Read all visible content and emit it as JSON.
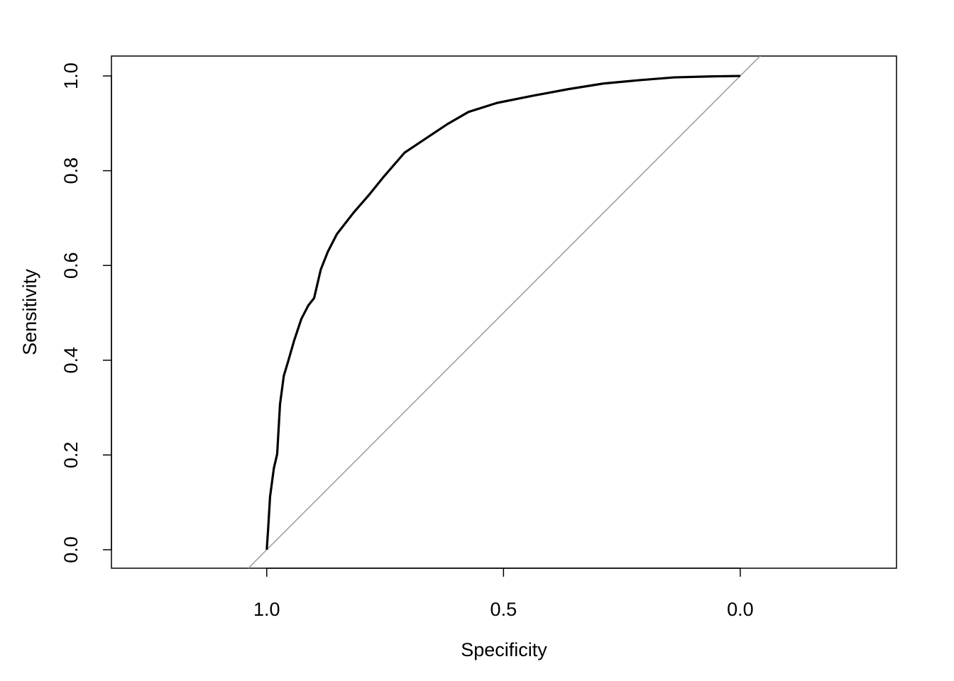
{
  "chart_data": {
    "type": "line",
    "xlabel": "Specificity",
    "ylabel": "Sensitivity",
    "x": [
      1.0,
      0.997,
      0.993,
      0.985,
      0.978,
      0.972,
      0.964,
      0.955,
      0.942,
      0.927,
      0.912,
      0.9,
      0.886,
      0.871,
      0.852,
      0.817,
      0.784,
      0.754,
      0.709,
      0.664,
      0.619,
      0.574,
      0.514,
      0.439,
      0.364,
      0.289,
      0.214,
      0.139,
      0.064,
      0.0
    ],
    "series": [
      {
        "color": "#000000",
        "values": [
          0.0,
          0.045,
          0.112,
          0.172,
          0.202,
          0.307,
          0.367,
          0.397,
          0.442,
          0.487,
          0.516,
          0.531,
          0.591,
          0.629,
          0.666,
          0.711,
          0.749,
          0.786,
          0.838,
          0.868,
          0.898,
          0.924,
          0.943,
          0.958,
          0.972,
          0.984,
          0.991,
          0.997,
          0.999,
          1.0
        ]
      }
    ],
    "xlim": [
      1.328,
      -0.33
    ],
    "ylim": [
      -0.039,
      1.042
    ],
    "xticks": [
      {
        "value": 1.0,
        "label": "1.0"
      },
      {
        "value": 0.5,
        "label": "0.5"
      },
      {
        "value": 0.0,
        "label": "0.0"
      }
    ],
    "yticks": [
      {
        "value": 0.0,
        "label": "0.0"
      },
      0.2,
      0.4,
      0.6,
      0.8,
      {
        "value": 1.0,
        "label": "1.0"
      }
    ],
    "reference_line_color": "#a0a0a0"
  }
}
